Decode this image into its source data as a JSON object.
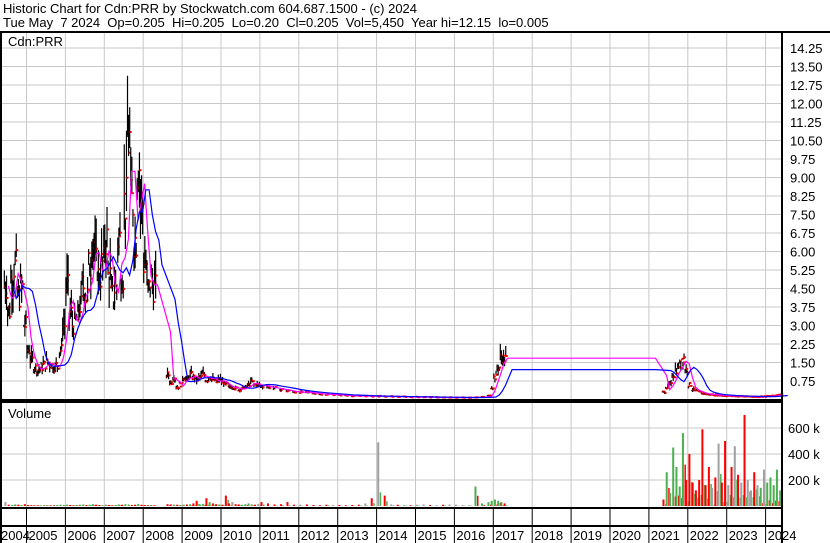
{
  "header": {
    "title": "Historic Chart for Cdn:PRR by Stockwatch.com 604.687.1500 - (c) 2024",
    "quote": "Tue May  7 2024  Op=0.205  Hi=0.205  Lo=0.20  Cl=0.205  Vol=5,450  Year hi=12.15  lo=0.005"
  },
  "chart_data": [
    {
      "type": "line",
      "title": "Cdn:PRR",
      "xlabel": "",
      "ylabel": "",
      "ylim": [
        0,
        14.6
      ],
      "yticks": [
        "0.75",
        "1.50",
        "2.25",
        "3.00",
        "3.75",
        "4.50",
        "5.25",
        "6.00",
        "6.75",
        "7.50",
        "8.25",
        "9.00",
        "9.75",
        "10.50",
        "11.25",
        "12.00",
        "12.75",
        "13.50",
        "14.25"
      ],
      "xticks": [
        "2004",
        "2005",
        "2006",
        "2007",
        "2008",
        "2009",
        "2010",
        "2011",
        "2012",
        "2013",
        "2014",
        "2015",
        "2016",
        "2017",
        "2018",
        "2019",
        "2020",
        "2021",
        "2022",
        "2023",
        "2024"
      ],
      "grid": true,
      "colors": {
        "bar": "#000000",
        "close": "#ff0000",
        "ma_short": "#ff00ff",
        "ma_long": "#0000ff"
      },
      "note_series": "monthly close (approx.) with high/low bars, short and long moving averages",
      "dates": [
        "2004-06",
        "2004-07",
        "2004-08",
        "2004-09",
        "2004-10",
        "2004-11",
        "2004-12",
        "2005-01",
        "2005-02",
        "2005-03",
        "2005-04",
        "2005-05",
        "2005-06",
        "2005-07",
        "2005-08",
        "2005-09",
        "2005-10",
        "2005-11",
        "2005-12",
        "2006-01",
        "2006-02",
        "2006-03",
        "2006-04",
        "2006-05",
        "2006-06",
        "2006-07",
        "2006-08",
        "2006-09",
        "2006-10",
        "2006-11",
        "2006-12",
        "2007-01",
        "2007-02",
        "2007-03",
        "2007-04",
        "2007-05",
        "2007-06",
        "2007-07",
        "2007-08",
        "2007-09",
        "2007-10",
        "2007-11",
        "2007-12",
        "2008-01",
        "2008-02",
        "2008-03",
        "2008-04",
        "2008-08",
        "2008-09",
        "2008-10",
        "2008-11",
        "2008-12",
        "2009-01",
        "2009-02",
        "2009-03",
        "2009-04",
        "2009-05",
        "2009-06",
        "2009-07",
        "2009-08",
        "2009-09",
        "2009-10",
        "2009-11",
        "2009-12",
        "2010-01",
        "2010-02",
        "2010-03",
        "2010-04",
        "2010-05",
        "2010-06",
        "2010-07",
        "2010-08",
        "2010-09",
        "2010-10",
        "2010-11",
        "2010-12",
        "2011-01",
        "2011-03",
        "2011-05",
        "2011-07",
        "2011-09",
        "2011-11",
        "2012-01",
        "2012-03",
        "2012-05",
        "2012-07",
        "2012-09",
        "2012-11",
        "2013-01",
        "2013-03",
        "2013-05",
        "2013-07",
        "2013-09",
        "2013-11",
        "2014-01",
        "2014-03",
        "2014-05",
        "2014-07",
        "2014-09",
        "2014-11",
        "2015-01",
        "2015-03",
        "2015-05",
        "2015-07",
        "2015-09",
        "2015-11",
        "2016-01",
        "2016-03",
        "2016-05",
        "2016-07",
        "2016-09",
        "2016-11",
        "2016-12",
        "2017-01",
        "2017-02",
        "2017-03",
        "2017-04",
        "2021-05",
        "2021-06",
        "2021-07",
        "2021-08",
        "2021-09",
        "2021-10",
        "2021-11",
        "2021-12",
        "2022-01",
        "2022-02",
        "2022-03",
        "2022-04",
        "2022-05",
        "2022-06",
        "2022-07",
        "2022-08",
        "2022-09",
        "2022-10",
        "2022-11",
        "2022-12",
        "2023-01",
        "2023-02",
        "2023-03",
        "2023-04",
        "2023-05",
        "2023-06",
        "2023-07",
        "2023-08",
        "2023-09",
        "2023-10",
        "2023-11",
        "2023-12",
        "2024-01",
        "2024-02",
        "2024-03",
        "2024-04",
        "2024-05"
      ],
      "close": [
        4.6,
        3.6,
        4.8,
        5.4,
        4.2,
        4.5,
        3.0,
        2.0,
        1.6,
        1.3,
        1.2,
        1.3,
        1.4,
        1.5,
        1.4,
        1.3,
        1.4,
        2.0,
        3.0,
        4.5,
        3.5,
        3.0,
        3.2,
        3.8,
        4.6,
        4.2,
        5.4,
        6.4,
        5.5,
        5.0,
        5.5,
        6.5,
        5.0,
        4.2,
        4.5,
        6.5,
        5.0,
        8.0,
        10.5,
        8.0,
        6.5,
        9.5,
        8.0,
        5.5,
        4.5,
        4.8,
        4.5,
        1.0,
        0.7,
        0.9,
        0.5,
        0.6,
        0.9,
        0.8,
        1.0,
        0.9,
        0.8,
        0.9,
        1.0,
        0.8,
        0.9,
        0.8,
        0.7,
        0.8,
        0.7,
        0.6,
        0.5,
        0.5,
        0.45,
        0.4,
        0.45,
        0.5,
        0.6,
        0.7,
        0.6,
        0.6,
        0.55,
        0.5,
        0.45,
        0.4,
        0.35,
        0.3,
        0.3,
        0.28,
        0.25,
        0.22,
        0.2,
        0.2,
        0.18,
        0.16,
        0.15,
        0.14,
        0.14,
        0.13,
        0.13,
        0.12,
        0.12,
        0.11,
        0.11,
        0.1,
        0.1,
        0.1,
        0.09,
        0.09,
        0.08,
        0.08,
        0.08,
        0.08,
        0.08,
        0.09,
        0.1,
        0.15,
        0.5,
        0.9,
        1.3,
        1.7,
        1.65,
        0.3,
        0.5,
        0.6,
        1.0,
        1.2,
        1.4,
        1.7,
        1.2,
        0.6,
        0.4,
        0.35,
        0.3,
        0.25,
        0.22,
        0.2,
        0.2,
        0.18,
        0.18,
        0.16,
        0.15,
        0.15,
        0.14,
        0.14,
        0.13,
        0.13,
        0.12,
        0.12,
        0.12,
        0.11,
        0.11,
        0.12,
        0.12,
        0.13,
        0.14,
        0.15,
        0.18,
        0.205
      ]
    },
    {
      "type": "bar",
      "title": "Volume",
      "ylim": [
        0,
        760000
      ],
      "yticks": [
        "200 k",
        "400 k",
        "600 k"
      ],
      "colors": {
        "up": "#4caf50",
        "down": "#ff0000",
        "unchanged": "#a0a0a0"
      },
      "volume_k": [
        30,
        10,
        8,
        12,
        10,
        6,
        14,
        8,
        6,
        5,
        6,
        5,
        8,
        6,
        5,
        6,
        8,
        10,
        8,
        10,
        8,
        6,
        8,
        10,
        12,
        8,
        10,
        14,
        10,
        8,
        6,
        10,
        8,
        6,
        8,
        12,
        10,
        14,
        12,
        8,
        10,
        16,
        10,
        8,
        6,
        8,
        6,
        14,
        12,
        10,
        10,
        8,
        10,
        12,
        14,
        20,
        40,
        12,
        16,
        60,
        30,
        20,
        14,
        12,
        10,
        80,
        20,
        30,
        14,
        12,
        10,
        14,
        20,
        12,
        10,
        16,
        30,
        20,
        12,
        14,
        30,
        10,
        10,
        12,
        8,
        6,
        10,
        8,
        8,
        6,
        8,
        10,
        20,
        60,
        490,
        80,
        12,
        10,
        8,
        6,
        10,
        12,
        8,
        6,
        10,
        12,
        10,
        8,
        6,
        150,
        20,
        30,
        40,
        50,
        40,
        30,
        20,
        50,
        260,
        100,
        450,
        300,
        150,
        560,
        200,
        400,
        180,
        120,
        200,
        590,
        160,
        300,
        140,
        220,
        480,
        180,
        500,
        160,
        300,
        460,
        240,
        180,
        700,
        200,
        120,
        260,
        160,
        140,
        280,
        180,
        220,
        160,
        280,
        120
      ]
    }
  ]
}
